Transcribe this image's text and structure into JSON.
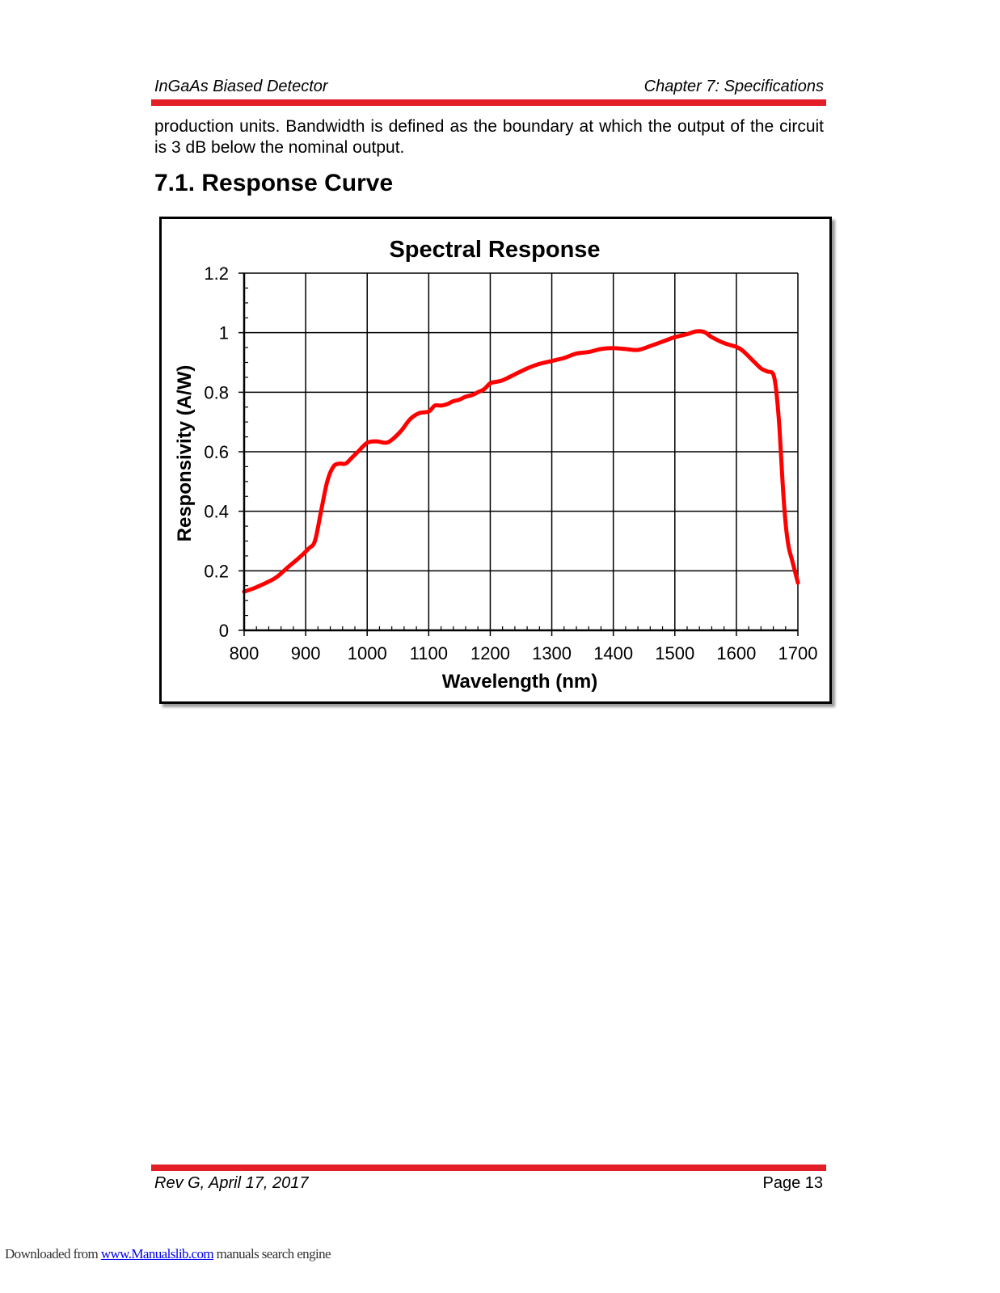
{
  "header": {
    "left": "InGaAs Biased Detector",
    "right": "Chapter 7: Specifications"
  },
  "body_text": "production units. Bandwidth is defined as the boundary at which the output of the circuit is 3 dB below the nominal output.",
  "section_title": "7.1.  Response Curve",
  "chart_data": {
    "type": "line",
    "title": "Spectral Response",
    "xlabel": "Wavelength (nm)",
    "ylabel": "Responsivity (A/W)",
    "xlim": [
      800,
      1700
    ],
    "ylim": [
      0,
      1.2
    ],
    "xticks": [
      "800",
      "900",
      "1000",
      "1100",
      "1200",
      "1300",
      "1400",
      "1500",
      "1600",
      "1700"
    ],
    "yticks": [
      "0",
      "0.2",
      "0.4",
      "0.6",
      "0.8",
      "1",
      "1.2"
    ],
    "grid": true,
    "legend": false,
    "series": [
      {
        "color": "#ff0000",
        "x": [
          800,
          820,
          850,
          870,
          890,
          905,
          915,
          925,
          935,
          945,
          955,
          965,
          975,
          985,
          1000,
          1015,
          1030,
          1040,
          1055,
          1070,
          1085,
          1100,
          1110,
          1120,
          1130,
          1140,
          1150,
          1160,
          1170,
          1180,
          1190,
          1200,
          1210,
          1220,
          1240,
          1260,
          1280,
          1300,
          1320,
          1340,
          1360,
          1380,
          1400,
          1420,
          1440,
          1460,
          1480,
          1500,
          1520,
          1530,
          1540,
          1550,
          1560,
          1580,
          1600,
          1610,
          1625,
          1640,
          1650,
          1660,
          1665,
          1670,
          1675,
          1680,
          1685,
          1690,
          1695,
          1700
        ],
        "y": [
          0.13,
          0.145,
          0.175,
          0.21,
          0.245,
          0.275,
          0.3,
          0.4,
          0.5,
          0.55,
          0.56,
          0.56,
          0.58,
          0.6,
          0.63,
          0.635,
          0.63,
          0.64,
          0.67,
          0.71,
          0.73,
          0.735,
          0.755,
          0.755,
          0.76,
          0.77,
          0.775,
          0.785,
          0.79,
          0.8,
          0.81,
          0.83,
          0.835,
          0.84,
          0.86,
          0.88,
          0.895,
          0.905,
          0.915,
          0.93,
          0.935,
          0.945,
          0.948,
          0.945,
          0.942,
          0.955,
          0.97,
          0.985,
          0.995,
          1.002,
          1.005,
          1.0,
          0.985,
          0.965,
          0.952,
          0.94,
          0.91,
          0.88,
          0.87,
          0.86,
          0.8,
          0.68,
          0.5,
          0.36,
          0.28,
          0.24,
          0.2,
          0.16
        ]
      }
    ]
  },
  "footer": {
    "left": "Rev G, April 17, 2017",
    "right": "Page 13"
  },
  "watermark": {
    "prefix": "Downloaded from ",
    "link": "www.Manualslib.com",
    "suffix": "  manuals search engine"
  }
}
